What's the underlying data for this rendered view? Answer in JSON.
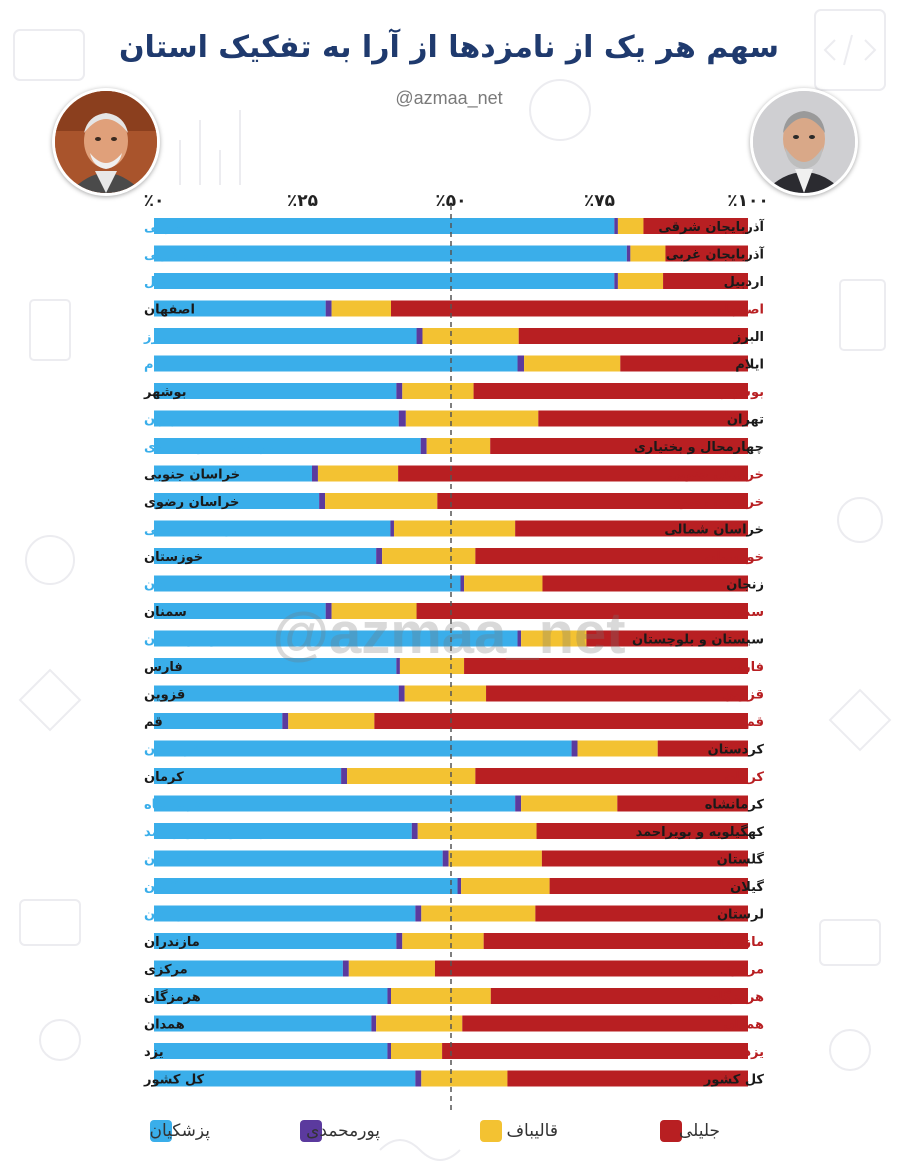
{
  "title": "سهم هر یک از نامزدها از آرا به تفکیک استان",
  "subtitle": "@azmaa_net",
  "watermark": "@azmaa_net",
  "colors": {
    "pezeshkian": "#3aaeea",
    "pourmohammadi": "#5b3a9e",
    "ghalibaf": "#f3c232",
    "jalili": "#b81f22",
    "title": "#1f3a6e"
  },
  "chart_data": {
    "type": "bar",
    "orientation": "horizontal",
    "stacked": true,
    "percent_stacked": true,
    "title": "سهم هر یک از نامزدها از آرا به تفکیک استان",
    "x_ticks": [
      "٪۰",
      "٪۲۵",
      "٪۵۰",
      "٪۷۵",
      "٪۱۰۰"
    ],
    "xlim": [
      0,
      100
    ],
    "reference_line": 50,
    "series": [
      {
        "name": "پزشکیان",
        "key": "pezeshkian"
      },
      {
        "name": "پورمحمدی",
        "key": "pourmohammadi"
      },
      {
        "name": "قالیباف",
        "key": "ghalibaf"
      },
      {
        "name": "جلیلی",
        "key": "jalili"
      }
    ],
    "categories": [
      {
        "name": "آذربایجان شرقی",
        "leader": "pezeshkian",
        "values": [
          77.5,
          0.6,
          4.3,
          17.6
        ]
      },
      {
        "name": "آذربایجان غربی",
        "leader": "pezeshkian",
        "values": [
          79.6,
          0.6,
          5.9,
          13.9
        ]
      },
      {
        "name": "اردبیل",
        "leader": "pezeshkian",
        "values": [
          77.5,
          0.6,
          7.6,
          14.3
        ]
      },
      {
        "name": "اصفهان",
        "leader": "jalili",
        "values": [
          28.9,
          1.0,
          10.0,
          60.1
        ]
      },
      {
        "name": "البرز",
        "leader": "pezeshkian",
        "values": [
          44.2,
          1.0,
          16.2,
          38.6
        ]
      },
      {
        "name": "ایلام",
        "leader": "pezeshkian",
        "values": [
          61.2,
          1.1,
          16.2,
          21.5
        ]
      },
      {
        "name": "بوشهر",
        "leader": "jalili",
        "values": [
          40.8,
          1.0,
          12.0,
          46.2
        ]
      },
      {
        "name": "تهران",
        "leader": "pezeshkian",
        "values": [
          41.2,
          1.2,
          22.3,
          35.3
        ]
      },
      {
        "name": "چهارمحال و بختیاری",
        "leader": "pezeshkian",
        "values": [
          44.9,
          1.0,
          10.7,
          43.4
        ]
      },
      {
        "name": "خراسان جنوبی",
        "leader": "jalili",
        "values": [
          26.6,
          1.0,
          13.5,
          58.9
        ]
      },
      {
        "name": "خراسان رضوی",
        "leader": "jalili",
        "values": [
          27.8,
          1.0,
          18.9,
          52.3
        ]
      },
      {
        "name": "خراسان شمالی",
        "leader": "pezeshkian",
        "values": [
          39.8,
          0.6,
          20.4,
          39.2
        ]
      },
      {
        "name": "خوزستان",
        "leader": "jalili",
        "values": [
          37.4,
          1.0,
          15.7,
          45.9
        ]
      },
      {
        "name": "زنجان",
        "leader": "pezeshkian",
        "values": [
          51.6,
          0.6,
          13.2,
          34.6
        ]
      },
      {
        "name": "سمنان",
        "leader": "jalili",
        "values": [
          28.9,
          1.0,
          14.3,
          55.8
        ]
      },
      {
        "name": "سیستان و بلوچستان",
        "leader": "pezeshkian",
        "values": [
          61.2,
          0.6,
          11.0,
          27.2
        ]
      },
      {
        "name": "فارس",
        "leader": "jalili",
        "values": [
          40.8,
          0.6,
          10.8,
          47.8
        ]
      },
      {
        "name": "قزوین",
        "leader": "jalili",
        "values": [
          41.2,
          1.0,
          13.7,
          44.1
        ]
      },
      {
        "name": "قم",
        "leader": "jalili",
        "values": [
          21.6,
          1.0,
          14.5,
          62.9
        ]
      },
      {
        "name": "کردستان",
        "leader": "pezeshkian",
        "values": [
          70.3,
          1.0,
          13.5,
          15.2
        ]
      },
      {
        "name": "کرمان",
        "leader": "jalili",
        "values": [
          31.5,
          1.0,
          21.6,
          45.9
        ]
      },
      {
        "name": "کرمانشاه",
        "leader": "pezeshkian",
        "values": [
          60.8,
          1.0,
          16.2,
          22.0
        ]
      },
      {
        "name": "کهگیلویه و بویراحمد",
        "leader": "pezeshkian",
        "values": [
          43.4,
          1.0,
          20.0,
          35.6
        ]
      },
      {
        "name": "گلستان",
        "leader": "pezeshkian",
        "values": [
          48.6,
          1.0,
          15.7,
          34.7
        ]
      },
      {
        "name": "گیلان",
        "leader": "pezeshkian",
        "values": [
          51.1,
          0.6,
          14.9,
          33.4
        ]
      },
      {
        "name": "لرستان",
        "leader": "pezeshkian",
        "values": [
          44.0,
          1.0,
          19.2,
          35.8
        ]
      },
      {
        "name": "مازندران",
        "leader": "jalili",
        "values": [
          40.8,
          1.0,
          13.7,
          44.5
        ]
      },
      {
        "name": "مرکزی",
        "leader": "jalili",
        "values": [
          31.8,
          1.0,
          14.5,
          52.7
        ]
      },
      {
        "name": "هرمزگان",
        "leader": "jalili",
        "values": [
          39.3,
          0.6,
          16.8,
          43.3
        ]
      },
      {
        "name": "همدان",
        "leader": "jalili",
        "values": [
          36.6,
          0.8,
          14.5,
          48.1
        ]
      },
      {
        "name": "یزد",
        "leader": "jalili",
        "values": [
          39.3,
          0.6,
          8.6,
          51.5
        ]
      },
      {
        "name": "کل کشور",
        "leader": "none",
        "values": [
          44.0,
          1.0,
          14.5,
          40.5
        ]
      }
    ]
  }
}
